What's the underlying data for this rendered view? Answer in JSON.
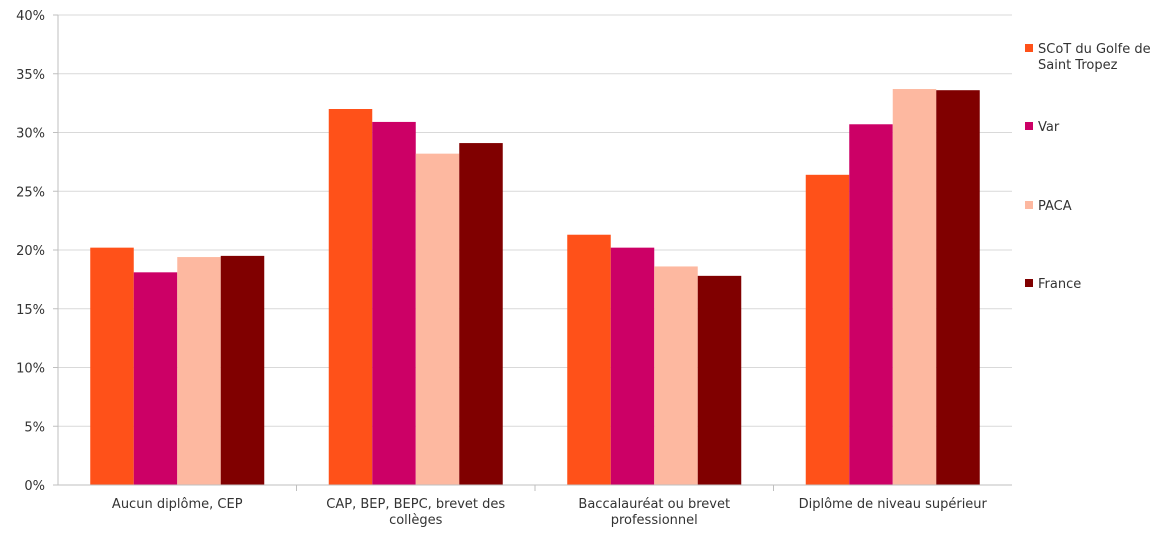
{
  "chart_data": {
    "type": "bar",
    "title": "",
    "xlabel": "",
    "ylabel": "",
    "ylim": [
      0,
      0.4
    ],
    "yticks": [
      "0%",
      "5%",
      "10%",
      "15%",
      "20%",
      "25%",
      "30%",
      "35%",
      "40%"
    ],
    "grid": true,
    "legend_position": "right",
    "categories": [
      [
        "Aucun diplôme, CEP"
      ],
      [
        "CAP, BEP, BEPC, brevet des",
        "collèges"
      ],
      [
        "Baccalauréat ou brevet",
        "professionnel"
      ],
      [
        "Diplôme de niveau supérieur"
      ]
    ],
    "series": [
      {
        "name": [
          "SCoT du Golfe de",
          "Saint Tropez"
        ],
        "color": "#FF5119",
        "values": [
          0.202,
          0.32,
          0.213,
          0.264
        ]
      },
      {
        "name": [
          "Var"
        ],
        "color": "#CC0066",
        "values": [
          0.181,
          0.309,
          0.202,
          0.307
        ]
      },
      {
        "name": [
          "PACA"
        ],
        "color": "#FDB8A0",
        "values": [
          0.194,
          0.282,
          0.186,
          0.337
        ]
      },
      {
        "name": [
          "France"
        ],
        "color": "#800000",
        "values": [
          0.195,
          0.291,
          0.178,
          0.336
        ]
      }
    ]
  }
}
